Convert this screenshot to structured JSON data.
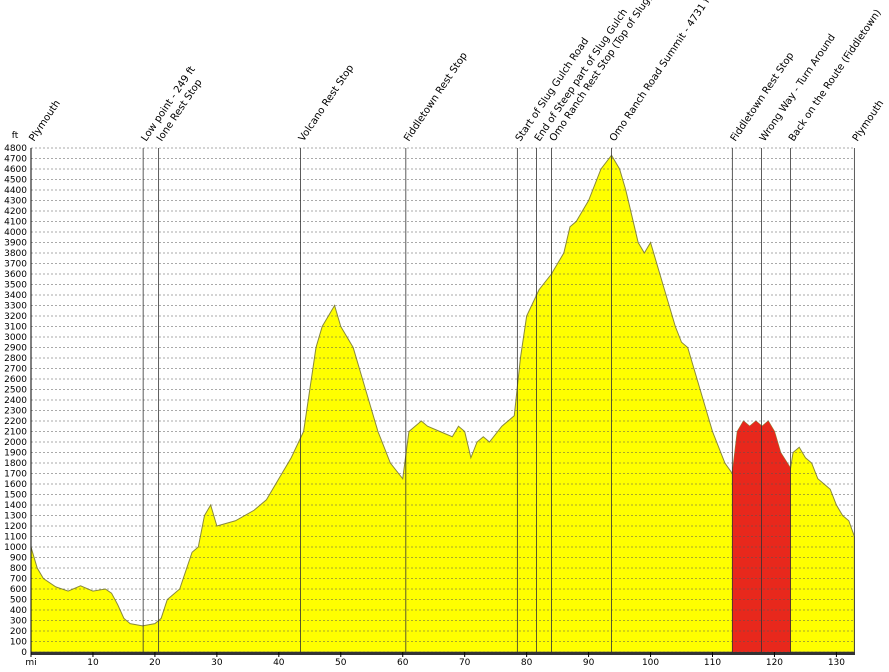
{
  "chart_data": {
    "type": "area",
    "y_unit": "ft",
    "xlim": [
      0,
      133
    ],
    "ylim": [
      0,
      4800
    ],
    "xticks": [
      {
        "value": 0,
        "label": "mi"
      },
      10,
      20,
      30,
      40,
      50,
      60,
      70,
      80,
      90,
      100,
      110,
      120,
      130
    ],
    "yticks": [
      0,
      100,
      200,
      300,
      400,
      500,
      600,
      700,
      800,
      900,
      1000,
      1100,
      1200,
      1300,
      1400,
      1500,
      1600,
      1700,
      1800,
      1900,
      2000,
      2100,
      2200,
      2300,
      2400,
      2500,
      2600,
      2700,
      2800,
      2900,
      3000,
      3100,
      3200,
      3300,
      3400,
      3500,
      3600,
      3700,
      3800,
      3900,
      4000,
      4100,
      4200,
      4300,
      4400,
      4500,
      4600,
      4700,
      4800
    ],
    "grid": true,
    "color": "#ffff00",
    "x": [
      0,
      1,
      2,
      4,
      6,
      8,
      10,
      12,
      13,
      14,
      15,
      16,
      18,
      20,
      21,
      22,
      24,
      26,
      27,
      28,
      29,
      30,
      33,
      36,
      38,
      40,
      42,
      44,
      45,
      46,
      47,
      48,
      49,
      50,
      51,
      52,
      54,
      56,
      58,
      60,
      61,
      62,
      63,
      64,
      66,
      68,
      69,
      70,
      71,
      72,
      73,
      74,
      76,
      78,
      79,
      80,
      82,
      84,
      86,
      87,
      88,
      90,
      92,
      93.7,
      95,
      96,
      98,
      99,
      100,
      101,
      102,
      104,
      105,
      106,
      108,
      110,
      112,
      113.2,
      114,
      115,
      116,
      117,
      118,
      119,
      120,
      121,
      122.6,
      123,
      124,
      125,
      126,
      127,
      128,
      129,
      130,
      131,
      132,
      132.9
    ],
    "values": [
      1000,
      800,
      700,
      620,
      580,
      630,
      580,
      600,
      560,
      450,
      320,
      270,
      249,
      270,
      320,
      500,
      600,
      950,
      1000,
      1300,
      1400,
      1200,
      1250,
      1350,
      1450,
      1650,
      1850,
      2100,
      2500,
      2900,
      3100,
      3200,
      3300,
      3100,
      3000,
      2900,
      2500,
      2100,
      1800,
      1650,
      2100,
      2150,
      2200,
      2150,
      2100,
      2050,
      2150,
      2100,
      1850,
      2000,
      2050,
      2000,
      2150,
      2250,
      2800,
      3200,
      3450,
      3600,
      3800,
      4050,
      4100,
      4300,
      4600,
      4731,
      4600,
      4400,
      3900,
      3800,
      3900,
      3700,
      3500,
      3100,
      2950,
      2900,
      2500,
      2100,
      1800,
      1700,
      2100,
      2200,
      2150,
      2200,
      2150,
      2200,
      2100,
      1900,
      1750,
      1900,
      1950,
      1850,
      1800,
      1650,
      1600,
      1550,
      1400,
      1300,
      1250,
      1100
    ],
    "highlight": {
      "x": [
        113.2,
        122.6
      ],
      "color": "#e8281c"
    },
    "annotations": [
      {
        "x": 0,
        "label": "Plymouth"
      },
      {
        "x": 18.1,
        "label": "Low point - 249 ft"
      },
      {
        "x": 20.6,
        "label": "Ione Rest Stop"
      },
      {
        "x": 43.5,
        "label": "Volcano Rest Stop"
      },
      {
        "x": 60.5,
        "label": "Fiddletown Rest Stop"
      },
      {
        "x": 78.5,
        "label": "Start of Slug Gulch Road"
      },
      {
        "x": 81.6,
        "label": "End of Steep part of Slug Gulch"
      },
      {
        "x": 84.0,
        "label": "Omo Ranch Rest Stop (Top of Slug)"
      },
      {
        "x": 93.7,
        "label": "Omo Ranch Road Summit - 4731 ft"
      },
      {
        "x": 113.2,
        "label": "Fiddletown Rest Stop"
      },
      {
        "x": 117.9,
        "label": "Wrong Way - Turn Around"
      },
      {
        "x": 122.6,
        "label": "Back on the Route (Fiddletown)"
      },
      {
        "x": 132.9,
        "label": "Plymouth"
      }
    ]
  }
}
